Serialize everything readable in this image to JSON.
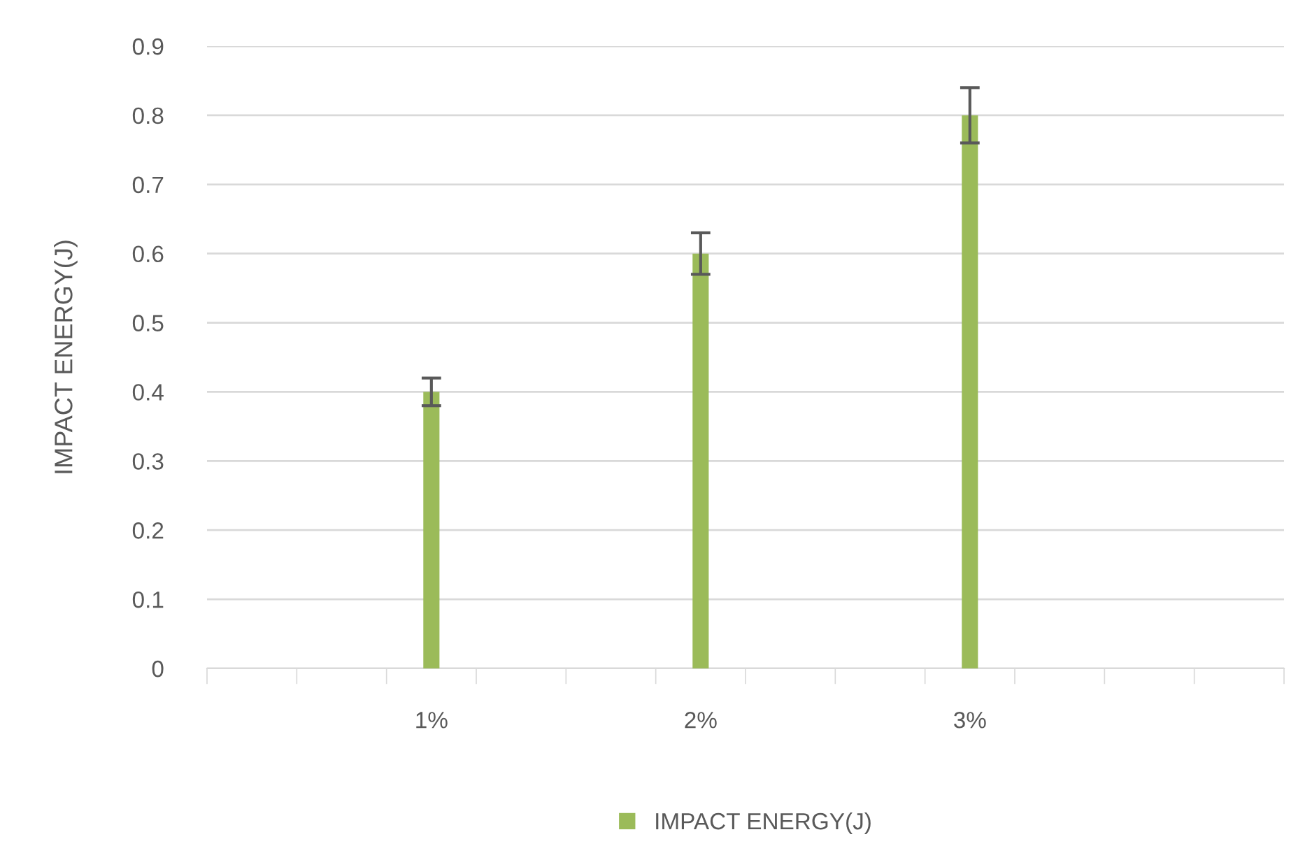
{
  "chart_data": {
    "type": "bar",
    "ylabel": "IMPACT ENERGY(J)",
    "categories": [
      null,
      null,
      "1%",
      null,
      null,
      "2%",
      null,
      null,
      "3%",
      null,
      null,
      null
    ],
    "series": [
      {
        "name": "IMPACT ENERGY(J)",
        "color": "#9bbb59",
        "values": [
          null,
          null,
          0.4,
          null,
          null,
          0.6,
          null,
          null,
          0.8,
          null,
          null,
          null
        ],
        "errors": [
          null,
          null,
          0.02,
          null,
          null,
          0.03,
          null,
          null,
          0.04,
          null,
          null,
          null
        ]
      }
    ],
    "ylim": [
      0,
      0.9
    ],
    "yticks": [
      0,
      0.1,
      0.2,
      0.3,
      0.4,
      0.5,
      0.6,
      0.7,
      0.8,
      0.9
    ],
    "grid": "y",
    "legend": "bottom"
  }
}
